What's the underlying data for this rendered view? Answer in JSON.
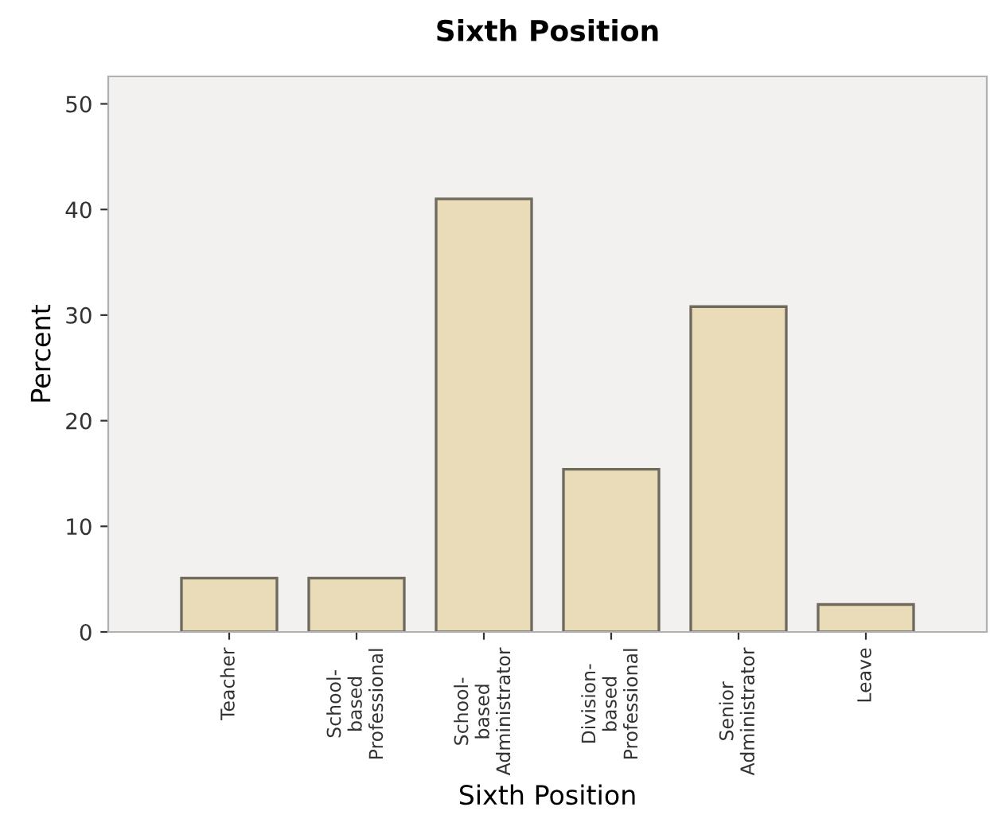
{
  "chart_data": {
    "type": "bar",
    "title": "Sixth Position",
    "xlabel": "Sixth Position",
    "ylabel": "Percent",
    "categories": [
      "Teacher",
      "School-\nbased\nProfessional",
      "School-\nbased\nAdministrator",
      "Division-\nbased\nProfessional",
      "Senior\nAdministrator",
      "Leave"
    ],
    "values": [
      5.1,
      5.1,
      41.0,
      15.4,
      30.8,
      2.6
    ],
    "color": "#eadcb8",
    "ylim": [
      0,
      52.6
    ],
    "yticks": [
      0,
      10,
      20,
      30,
      40,
      50
    ],
    "grid": false,
    "legend": false
  }
}
